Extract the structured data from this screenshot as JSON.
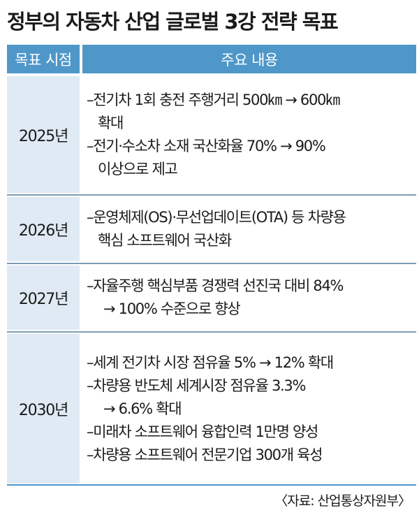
{
  "title": "정부의 자동차 산업 글로벌 3강 전략 목표",
  "table": {
    "headers": {
      "col1": "목표 시점",
      "col2": "주요 내용"
    },
    "rows": [
      {
        "year": "2025년",
        "lines": [
          "–전기차 1회 충전 주행거리 500㎞ → 600㎞",
          "확대",
          "–전기·수소차 소재 국산화율 70% → 90%",
          "이상으로 제고"
        ]
      },
      {
        "year": "2026년",
        "lines": [
          "–운영체제(OS)·무선업데이트(OTA) 등 차량용",
          "핵심 소프트웨어 국산화"
        ]
      },
      {
        "year": "2027년",
        "lines": [
          "–자율주행 핵심부품 경쟁력 선진국 대비 84%",
          "→ 100% 수준으로 향상"
        ]
      },
      {
        "year": "2030년",
        "lines": [
          "–세계 전기차 시장 점유율 5% → 12% 확대",
          "–차량용 반도체 세계시장 점유율 3.3%",
          "→ 6.6% 확대",
          "–미래차 소프트웨어 융합인력 1만명 양성",
          "–차량용 소프트웨어 전문기업 300개 육성"
        ]
      }
    ]
  },
  "source": "〈자료: 산업통상자원부〉",
  "colors": {
    "header_bg": "#4f97c9",
    "year_bg": "#dfeaf4",
    "divider": "#7d9cb4"
  }
}
